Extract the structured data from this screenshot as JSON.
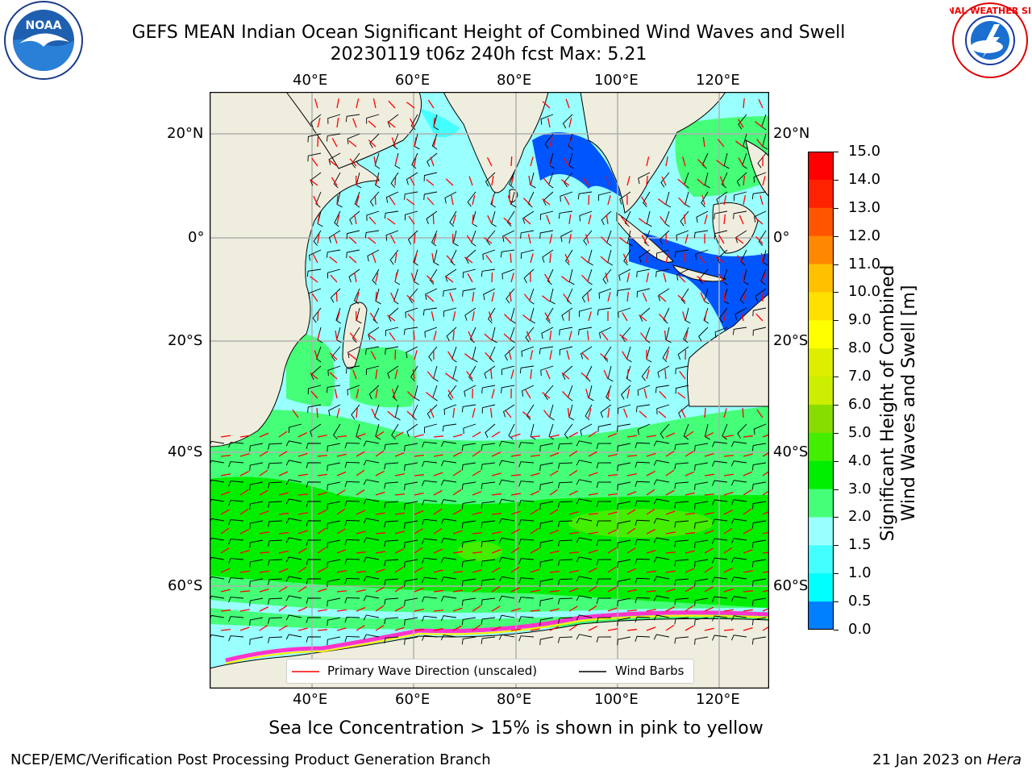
{
  "header": {
    "title_line1": "GEFS MEAN Indian Ocean Significant Height of Combined Wind Waves and Swell",
    "title_line2": "20230119 t06z 240h fcst   Max: 5.21"
  },
  "logos": {
    "left": "noaa-logo",
    "right": "nws-logo",
    "right_text": "NATIONAL WEATHER SERVICE"
  },
  "map": {
    "top_lon_labels": [
      "40°E",
      "60°E",
      "80°E",
      "100°E",
      "120°E"
    ],
    "bottom_lon_labels": [
      "40°E",
      "60°E",
      "80°E",
      "100°E",
      "120°E"
    ],
    "left_lat_labels": [
      "20°N",
      "0°",
      "20°S",
      "40°S",
      "60°S"
    ],
    "right_lat_labels": [
      "20°N",
      "0°",
      "20°S",
      "40°S",
      "60°S"
    ],
    "lon_range": [
      20,
      130
    ],
    "lat_range": [
      -72,
      29
    ],
    "gridlines": true
  },
  "legend": {
    "wave_dir": "Primary Wave Direction (unscaled)",
    "wind_barbs": "Wind Barbs",
    "wave_color": "#ff0000",
    "barb_color": "#000000"
  },
  "colorbar": {
    "label_line1": "Significant Height of Combined",
    "label_line2": "Wind Waves and Swell [m]",
    "ticks": [
      "15.0",
      "14.0",
      "13.0",
      "12.0",
      "11.0",
      "10.0",
      "9.0",
      "8.0",
      "7.0",
      "6.0",
      "5.0",
      "4.0",
      "3.0",
      "2.0",
      "1.5",
      "1.0",
      "0.5",
      "0.0"
    ],
    "colors": [
      "#0000ff",
      "#0055ff",
      "#00c0ff",
      "#00ffff",
      "#44ffff",
      "#99ffff",
      "#44ff77",
      "#00ee00",
      "#44ee00",
      "#88dd00",
      "#ccee00",
      "#ddee00",
      "#ffff00",
      "#ffe000",
      "#ffc000",
      "#ff8800",
      "#ff5500",
      "#ff2200",
      "#ff0000"
    ]
  },
  "caption": "Sea Ice Concentration > 15% is shown in pink to yellow",
  "footer": {
    "left": "NCEP/EMC/Verification Post Processing Product Generation Branch",
    "right_date": "21 Jan 2023 on",
    "right_host": "Hera"
  }
}
